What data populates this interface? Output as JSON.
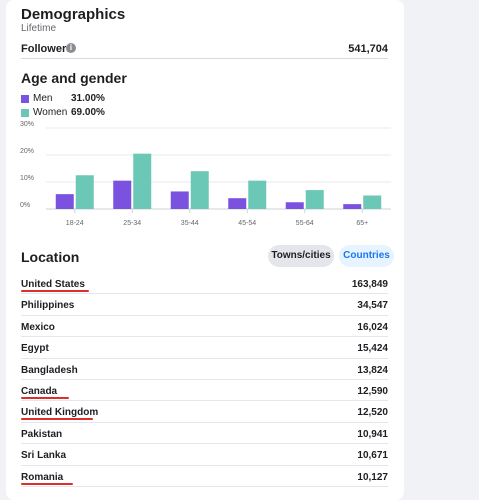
{
  "demographics": {
    "title": "Demographics",
    "subtitle": "Lifetime",
    "followers_label": "Followers",
    "followers_value": "541,704"
  },
  "age_gender": {
    "title": "Age and gender",
    "legend": [
      {
        "name": "Men",
        "value": "31.00%",
        "color": "#7b52e0"
      },
      {
        "name": "Women",
        "value": "69.00%",
        "color": "#6bc7b6"
      }
    ]
  },
  "chart_data": {
    "type": "bar",
    "categories": [
      "18-24",
      "25-34",
      "35-44",
      "45-54",
      "55-64",
      "65+"
    ],
    "series": [
      {
        "name": "Men",
        "values": [
          5.5,
          10.5,
          6.5,
          4,
          2.5,
          1.8
        ],
        "color": "#7b52e0"
      },
      {
        "name": "Women",
        "values": [
          12.5,
          20.5,
          14,
          10.5,
          7,
          5
        ],
        "color": "#6bc7b6"
      }
    ],
    "yticks": [
      "0%",
      "10%",
      "20%",
      "30%"
    ],
    "ylim": [
      0,
      30
    ],
    "grid": true
  },
  "location": {
    "title": "Location",
    "tabs": {
      "towns": "Towns/cities",
      "countries": "Countries"
    },
    "rows": [
      {
        "name": "United States",
        "value": "163,849",
        "underlined": true
      },
      {
        "name": "Philippines",
        "value": "34,547",
        "underlined": false
      },
      {
        "name": "Mexico",
        "value": "16,024",
        "underlined": false
      },
      {
        "name": "Egypt",
        "value": "15,424",
        "underlined": false
      },
      {
        "name": "Bangladesh",
        "value": "13,824",
        "underlined": false
      },
      {
        "name": "Canada",
        "value": "12,590",
        "underlined": true
      },
      {
        "name": "United Kingdom",
        "value": "12,520",
        "underlined": true
      },
      {
        "name": "Pakistan",
        "value": "10,941",
        "underlined": false
      },
      {
        "name": "Sri Lanka",
        "value": "10,671",
        "underlined": false
      },
      {
        "name": "Romania",
        "value": "10,127",
        "underlined": true
      }
    ]
  }
}
